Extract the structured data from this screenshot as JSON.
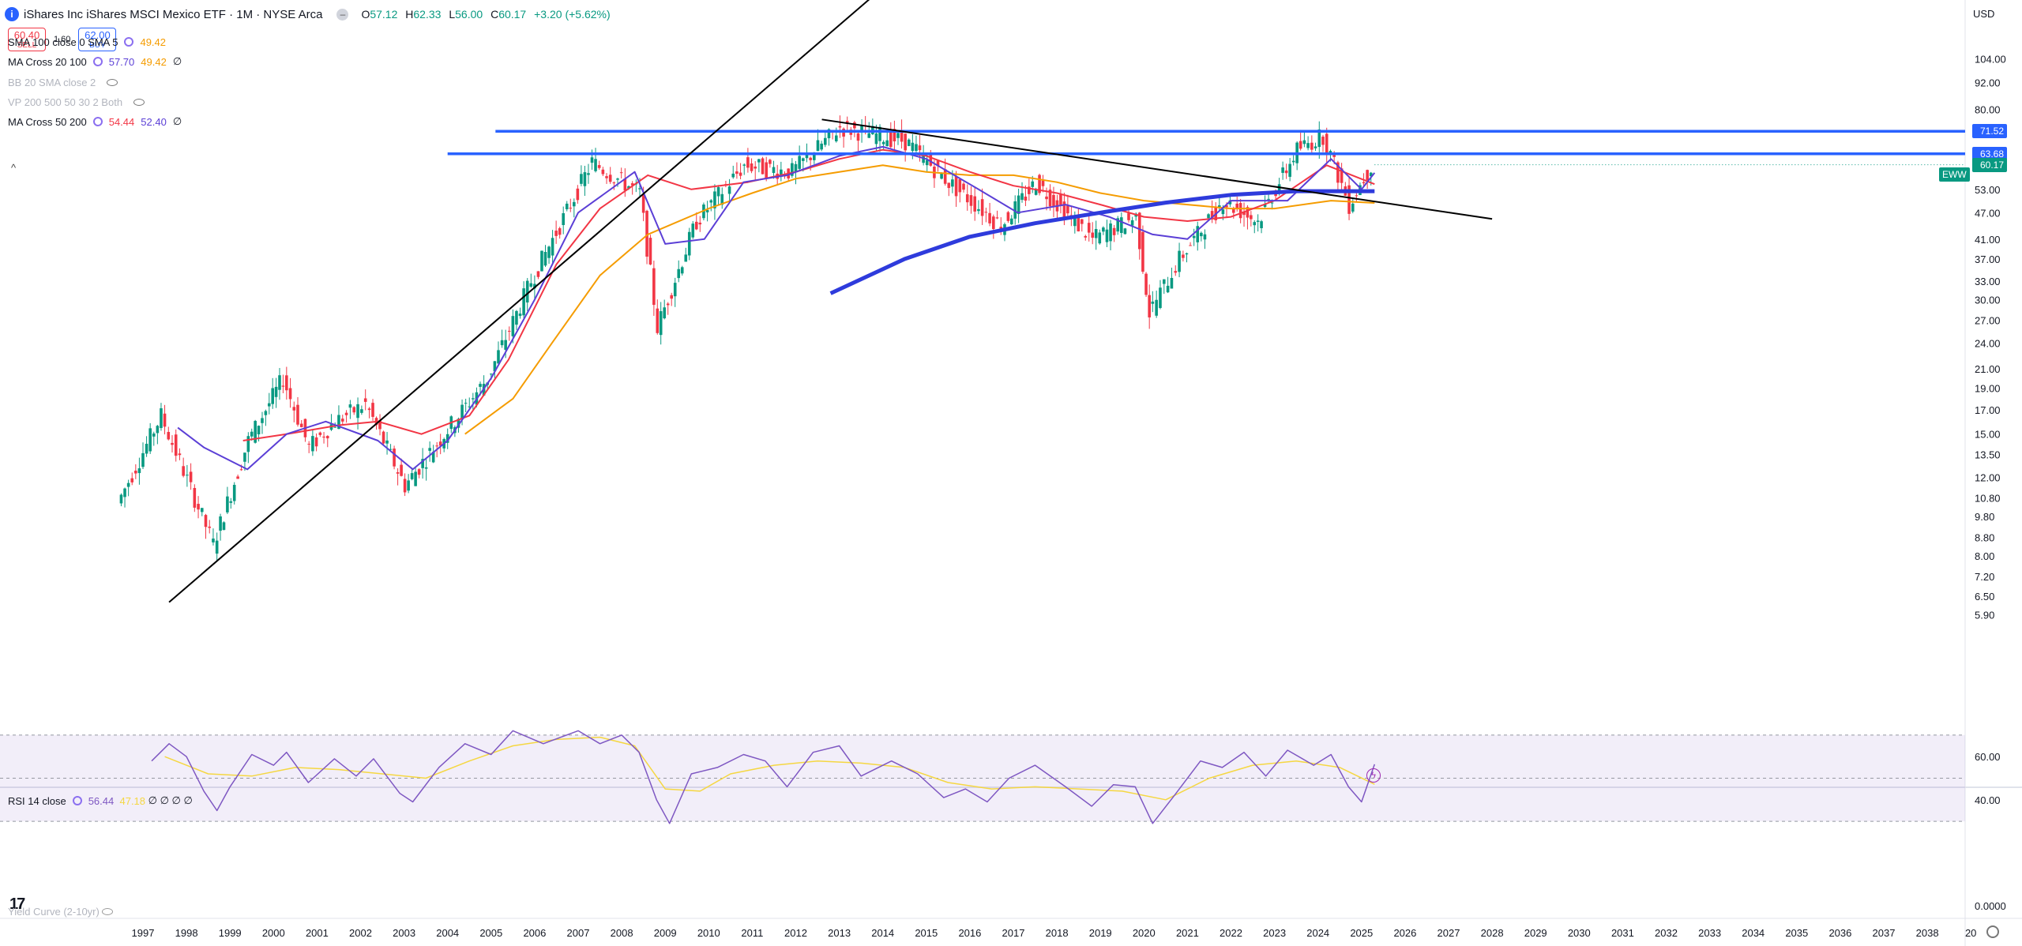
{
  "header": {
    "logo_letter": "i",
    "title": "iShares Inc iShares MSCI Mexico ETF · 1M · NYSE Arca",
    "ohlc": [
      {
        "k": "O",
        "v": "57.12"
      },
      {
        "k": "H",
        "v": "62.33"
      },
      {
        "k": "L",
        "v": "56.00"
      },
      {
        "k": "C",
        "v": "60.17"
      }
    ],
    "change": "+3.20 (+5.62%)"
  },
  "trade": {
    "sell_price": "60.40",
    "sell_label": "SELL",
    "spread": "1.60",
    "buy_price": "62.00",
    "buy_label": "BUY"
  },
  "indicators": [
    {
      "name": "SMA 100 close 0 SMA 5",
      "v1": "49.42",
      "v1_color": "#f59c00",
      "v2": "",
      "v2_color": "",
      "tail": "",
      "faded": false,
      "top": 52
    },
    {
      "name": "MA Cross 20 100",
      "v1": "57.70",
      "v1_color": "#5b3fd6",
      "v2": "49.42",
      "v2_color": "#f59c00",
      "tail": "∅",
      "faded": false,
      "top": 77
    },
    {
      "name": "BB 20 SMA close 2",
      "v1": "",
      "v1_color": "",
      "v2": "",
      "v2_color": "",
      "tail": "",
      "faded": true,
      "top": 103
    },
    {
      "name": "VP 200 500 50 30 2 Both",
      "v1": "",
      "v1_color": "",
      "v2": "",
      "v2_color": "",
      "tail": "",
      "faded": true,
      "top": 128
    },
    {
      "name": "MA Cross 50 200",
      "v1": "54.44",
      "v1_color": "#f23645",
      "v2": "52.40",
      "v2_color": "#5b3fd6",
      "tail": "∅",
      "faded": false,
      "top": 153
    }
  ],
  "price_axis": {
    "currency": "USD",
    "ticks": [
      "104.00",
      "92.00",
      "80.00",
      "63.68",
      "53.00",
      "47.00",
      "41.00",
      "37.00",
      "33.00",
      "30.00",
      "27.00",
      "24.00",
      "21.00",
      "19.00",
      "17.00",
      "15.00",
      "13.50",
      "12.00",
      "10.80",
      "9.80",
      "8.80",
      "8.00",
      "7.20",
      "6.50",
      "5.90"
    ],
    "badges": [
      {
        "label": "71.52",
        "color": "#2962ff"
      },
      {
        "label": "63.68",
        "color": "#2962ff"
      },
      {
        "label": "60.17",
        "color": "#089981"
      }
    ],
    "symbol_badge": "EWW"
  },
  "rsi": {
    "title": "RSI 14 close",
    "value": "56.44",
    "value_color": "#7e57c2",
    "ma_value": "47.18",
    "ma_color": "#f5d742",
    "tail": "∅ ∅ ∅ ∅",
    "ticks": [
      "60.00",
      "40.00",
      "0.0000"
    ]
  },
  "yield_curve": "Yield Curve (2-10yr)",
  "tv_logo": "17",
  "time_axis": [
    "1997",
    "1998",
    "1999",
    "2000",
    "2001",
    "2002",
    "2003",
    "2004",
    "2005",
    "2006",
    "2007",
    "2008",
    "2009",
    "2010",
    "2011",
    "2012",
    "2013",
    "2014",
    "2015",
    "2016",
    "2017",
    "2018",
    "2019",
    "2020",
    "2021",
    "2022",
    "2023",
    "2024",
    "2025",
    "2026",
    "2027",
    "2028",
    "2029",
    "2030",
    "2031",
    "2032",
    "2033",
    "2034",
    "2035",
    "2036",
    "2037",
    "2038",
    "20"
  ],
  "chart_data": {
    "type": "line",
    "scale": "log",
    "candles_yearly_closes": [
      {
        "year": 1996.5,
        "price": 10.5
      },
      {
        "year": 1997.5,
        "price": 16.5
      },
      {
        "year": 1998.7,
        "price": 8.5
      },
      {
        "year": 1999.5,
        "price": 14.5
      },
      {
        "year": 2000.3,
        "price": 20.0
      },
      {
        "year": 2000.9,
        "price": 14.0
      },
      {
        "year": 2001.5,
        "price": 16.0
      },
      {
        "year": 2002.2,
        "price": 17.5
      },
      {
        "year": 2003.1,
        "price": 11.5
      },
      {
        "year": 2004.0,
        "price": 15.0
      },
      {
        "year": 2005.0,
        "price": 20.0
      },
      {
        "year": 2006.0,
        "price": 33.0
      },
      {
        "year": 2007.4,
        "price": 61.0
      },
      {
        "year": 2008.5,
        "price": 52.0
      },
      {
        "year": 2008.9,
        "price": 26.0
      },
      {
        "year": 2009.8,
        "price": 45.0
      },
      {
        "year": 2010.9,
        "price": 60.0
      },
      {
        "year": 2012.0,
        "price": 58.0
      },
      {
        "year": 2013.1,
        "price": 73.0
      },
      {
        "year": 2014.6,
        "price": 68.0
      },
      {
        "year": 2015.6,
        "price": 55.0
      },
      {
        "year": 2016.8,
        "price": 44.0
      },
      {
        "year": 2017.6,
        "price": 55.0
      },
      {
        "year": 2018.9,
        "price": 41.0
      },
      {
        "year": 2019.9,
        "price": 46.0
      },
      {
        "year": 2020.2,
        "price": 28.0
      },
      {
        "year": 2020.9,
        "price": 37.0
      },
      {
        "year": 2021.9,
        "price": 50.0
      },
      {
        "year": 2022.7,
        "price": 45.0
      },
      {
        "year": 2023.6,
        "price": 65.0
      },
      {
        "year": 2024.2,
        "price": 70.0
      },
      {
        "year": 2024.8,
        "price": 49.0
      },
      {
        "year": 2025.3,
        "price": 60.17
      }
    ],
    "ma_cross_20": [
      [
        1997.8,
        15.5
      ],
      [
        1998.4,
        14.0
      ],
      [
        1999.4,
        12.5
      ],
      [
        2000.3,
        15.0
      ],
      [
        2001.2,
        16.0
      ],
      [
        2002.4,
        14.5
      ],
      [
        2003.2,
        12.5
      ],
      [
        2004.0,
        14.5
      ],
      [
        2005.0,
        20.0
      ],
      [
        2006.0,
        30.0
      ],
      [
        2007.0,
        47.0
      ],
      [
        2008.3,
        58.0
      ],
      [
        2009.0,
        40.0
      ],
      [
        2009.9,
        41.0
      ],
      [
        2010.8,
        55.0
      ],
      [
        2011.8,
        57.0
      ],
      [
        2013.0,
        63.0
      ],
      [
        2014.0,
        66.0
      ],
      [
        2015.0,
        62.0
      ],
      [
        2016.2,
        53.0
      ],
      [
        2017.1,
        47.0
      ],
      [
        2018.2,
        49.0
      ],
      [
        2019.2,
        46.0
      ],
      [
        2020.2,
        42.0
      ],
      [
        2021.0,
        41.0
      ],
      [
        2022.0,
        50.0
      ],
      [
        2023.3,
        50.0
      ],
      [
        2024.3,
        62.0
      ],
      [
        2025.0,
        53.0
      ],
      [
        2025.3,
        57.7
      ]
    ],
    "ma_cross_50": [
      [
        1999.3,
        14.5
      ],
      [
        2000.3,
        15.0
      ],
      [
        2001.5,
        15.7
      ],
      [
        2002.4,
        16.0
      ],
      [
        2003.4,
        15.0
      ],
      [
        2004.5,
        16.5
      ],
      [
        2005.4,
        22.0
      ],
      [
        2006.5,
        36.0
      ],
      [
        2007.5,
        48.0
      ],
      [
        2008.6,
        57.0
      ],
      [
        2009.6,
        53.0
      ],
      [
        2010.9,
        55.0
      ],
      [
        2012.0,
        58.0
      ],
      [
        2013.0,
        62.0
      ],
      [
        2014.0,
        65.0
      ],
      [
        2015.0,
        63.0
      ],
      [
        2016.0,
        58.0
      ],
      [
        2017.0,
        54.0
      ],
      [
        2018.0,
        52.0
      ],
      [
        2019.0,
        49.0
      ],
      [
        2020.0,
        46.0
      ],
      [
        2021.0,
        45.0
      ],
      [
        2022.0,
        46.0
      ],
      [
        2023.0,
        50.0
      ],
      [
        2024.2,
        60.0
      ],
      [
        2025.3,
        54.44
      ]
    ],
    "sma_100": [
      [
        2004.4,
        15.0
      ],
      [
        2005.5,
        18.0
      ],
      [
        2006.4,
        24.0
      ],
      [
        2007.5,
        34.0
      ],
      [
        2008.6,
        42.0
      ],
      [
        2010.0,
        48.0
      ],
      [
        2011.0,
        52.0
      ],
      [
        2012.0,
        56.0
      ],
      [
        2013.0,
        58.0
      ],
      [
        2014.0,
        60.0
      ],
      [
        2015.0,
        58.0
      ],
      [
        2016.0,
        57.0
      ],
      [
        2017.0,
        57.0
      ],
      [
        2018.0,
        55.0
      ],
      [
        2019.0,
        52.0
      ],
      [
        2020.0,
        50.0
      ],
      [
        2021.0,
        49.0
      ],
      [
        2022.0,
        48.0
      ],
      [
        2023.0,
        48.0
      ],
      [
        2024.3,
        50.0
      ],
      [
        2025.3,
        49.42
      ]
    ],
    "blue_trend": [
      [
        2012.8,
        31.0
      ],
      [
        2014.5,
        37.0
      ],
      [
        2016.0,
        41.5
      ],
      [
        2017.5,
        44.5
      ],
      [
        2019.0,
        47.0
      ],
      [
        2020.5,
        49.5
      ],
      [
        2022.0,
        51.5
      ],
      [
        2023.5,
        52.5
      ],
      [
        2025.3,
        52.5
      ]
    ],
    "horizontal_levels": [
      {
        "price": 71.52,
        "from_year": 2005.1
      },
      {
        "price": 63.68,
        "from_year": 2004.0
      }
    ],
    "trendlines": [
      {
        "from": [
          1997.6,
          6.3
        ],
        "to": [
          2014.0,
          150.0
        ]
      },
      {
        "from": [
          2012.6,
          76.0
        ],
        "to": [
          2028.0,
          45.5
        ]
      }
    ],
    "rsi_series": [
      [
        1997.2,
        58
      ],
      [
        1997.6,
        66
      ],
      [
        1998.0,
        60
      ],
      [
        1998.4,
        44
      ],
      [
        1998.7,
        35
      ],
      [
        1999.0,
        46
      ],
      [
        1999.5,
        61
      ],
      [
        2000.0,
        56
      ],
      [
        2000.3,
        62
      ],
      [
        2000.8,
        48
      ],
      [
        2001.4,
        59
      ],
      [
        2001.9,
        51
      ],
      [
        2002.3,
        59
      ],
      [
        2002.9,
        43
      ],
      [
        2003.2,
        39
      ],
      [
        2003.8,
        55
      ],
      [
        2004.4,
        66
      ],
      [
        2005.0,
        61
      ],
      [
        2005.5,
        72
      ],
      [
        2006.2,
        66
      ],
      [
        2007.0,
        72
      ],
      [
        2007.5,
        66
      ],
      [
        2008.0,
        70
      ],
      [
        2008.4,
        62
      ],
      [
        2008.8,
        40
      ],
      [
        2009.1,
        29
      ],
      [
        2009.6,
        52
      ],
      [
        2010.2,
        55
      ],
      [
        2010.8,
        61
      ],
      [
        2011.3,
        58
      ],
      [
        2011.8,
        46
      ],
      [
        2012.4,
        62
      ],
      [
        2013.0,
        65
      ],
      [
        2013.5,
        51
      ],
      [
        2014.2,
        58
      ],
      [
        2014.8,
        52
      ],
      [
        2015.4,
        41
      ],
      [
        2015.9,
        45
      ],
      [
        2016.4,
        39
      ],
      [
        2016.9,
        50
      ],
      [
        2017.5,
        56
      ],
      [
        2018.2,
        46
      ],
      [
        2018.8,
        37
      ],
      [
        2019.3,
        47
      ],
      [
        2019.8,
        46
      ],
      [
        2020.2,
        29
      ],
      [
        2020.7,
        42
      ],
      [
        2021.3,
        58
      ],
      [
        2021.8,
        55
      ],
      [
        2022.3,
        62
      ],
      [
        2022.8,
        51
      ],
      [
        2023.3,
        63
      ],
      [
        2023.9,
        56
      ],
      [
        2024.3,
        61
      ],
      [
        2024.7,
        46
      ],
      [
        2025.0,
        39
      ],
      [
        2025.3,
        56.44
      ]
    ],
    "rsi_ma_series": [
      [
        1997.5,
        60
      ],
      [
        1998.5,
        52
      ],
      [
        1999.5,
        51
      ],
      [
        2000.5,
        55
      ],
      [
        2001.5,
        54
      ],
      [
        2002.5,
        52
      ],
      [
        2003.5,
        50
      ],
      [
        2004.5,
        58
      ],
      [
        2005.5,
        65
      ],
      [
        2006.5,
        68
      ],
      [
        2007.5,
        69
      ],
      [
        2008.3,
        65
      ],
      [
        2009.0,
        45
      ],
      [
        2009.8,
        44
      ],
      [
        2010.5,
        52
      ],
      [
        2011.5,
        56
      ],
      [
        2012.5,
        58
      ],
      [
        2013.5,
        57
      ],
      [
        2014.5,
        55
      ],
      [
        2015.5,
        48
      ],
      [
        2016.5,
        45
      ],
      [
        2017.5,
        46
      ],
      [
        2018.5,
        45
      ],
      [
        2019.5,
        44
      ],
      [
        2020.5,
        40
      ],
      [
        2021.5,
        50
      ],
      [
        2022.5,
        56
      ],
      [
        2023.5,
        58
      ],
      [
        2024.5,
        55
      ],
      [
        2025.3,
        47.18
      ]
    ],
    "rsi_range": [
      0,
      80
    ]
  }
}
